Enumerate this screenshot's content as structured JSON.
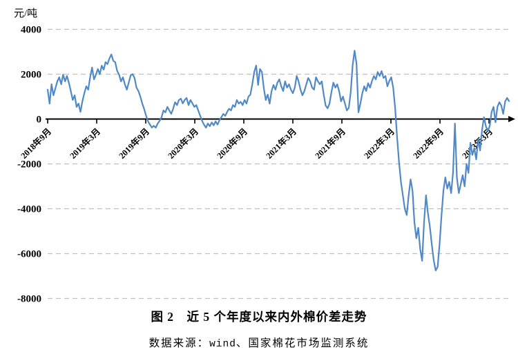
{
  "caption": {
    "title": "图 2　近 5 个年度以来内外棉价差走势",
    "source_prefix": "数据来源：",
    "source_wind": "wind",
    "source_suffix": "、国家棉花市场监测系统"
  },
  "chart_data": {
    "type": "line",
    "title": "图2 近5个年度以来内外棉价差走势",
    "series_name": "内外棉价差",
    "unit": "元/吨",
    "ylabel": "元/吨",
    "xlabel": "",
    "ylim": [
      -8000,
      4000
    ],
    "y_ticks": [
      4000,
      2000,
      0,
      -2000,
      -4000,
      -6000,
      -8000
    ],
    "x_tick_labels": [
      "2018年9月",
      "2019年3月",
      "2019年9月",
      "2020年3月",
      "2020年9月",
      "2021年3月",
      "2021年9月",
      "2022年3月",
      "2022年9月",
      "2023年3月"
    ],
    "grid": "dashed-horizontal",
    "legend": "none",
    "line_color": "#5089C8",
    "gridline_color": "#BFBFBF",
    "axis_color": "#000000",
    "values": [
      1310,
      690,
      1550,
      1060,
      1370,
      1680,
      1860,
      1550,
      1980,
      1680,
      1920,
      1620,
      1250,
      850,
      1060,
      540,
      690,
      320,
      790,
      1150,
      1460,
      1310,
      1860,
      2300,
      1770,
      1980,
      2230,
      2000,
      2380,
      2200,
      2540,
      2450,
      2700,
      2880,
      2600,
      2540,
      2150,
      1980,
      1680,
      1860,
      1550,
      1310,
      1620,
      1950,
      2000,
      1830,
      1400,
      1250,
      1000,
      690,
      450,
      150,
      -100,
      -250,
      -380,
      -300,
      -385,
      -200,
      -80,
      80,
      385,
      300,
      540,
      385,
      230,
      460,
      750,
      620,
      850,
      910,
      700,
      850,
      940,
      620,
      850,
      700,
      540,
      620,
      385,
      150,
      -80,
      -250,
      -385,
      -200,
      -320,
      -150,
      -280,
      -100,
      -250,
      -50,
      80,
      230,
      140,
      320,
      460,
      385,
      620,
      540,
      850,
      690,
      770,
      620,
      850,
      690,
      1000,
      1090,
      1550,
      2100,
      2385,
      1520,
      2230,
      2100,
      1370,
      850,
      1090,
      690,
      1250,
      1520,
      1310,
      1620,
      1770,
      1460,
      1250,
      1680,
      1400,
      1550,
      1310,
      1150,
      1400,
      1920,
      1680,
      1310,
      1060,
      1250,
      1550,
      1830,
      1680,
      1400,
      1310,
      1860,
      1680,
      1550,
      1680,
      1090,
      600,
      480,
      690,
      1210,
      1620,
      1400,
      1550,
      1250,
      790,
      1000,
      690,
      385,
      500,
      1200,
      2400,
      3050,
      2460,
      300,
      690,
      1150,
      1460,
      1250,
      1600,
      1400,
      1700,
      1920,
      1770,
      2100,
      1920,
      2140,
      1830,
      1920,
      1460,
      1700,
      1860,
      1400,
      500,
      -800,
      -1900,
      -2800,
      -3400,
      -4000,
      -4280,
      -3400,
      -2690,
      -3200,
      -4600,
      -5310,
      -4850,
      -5800,
      -6320,
      -4600,
      -3400,
      -4200,
      -4800,
      -5600,
      -6300,
      -6750,
      -6600,
      -5600,
      -4320,
      -3200,
      -2600,
      -3100,
      -2800,
      -3300,
      -2400,
      -200,
      -2600,
      -3300,
      -2900,
      -2500,
      -3000,
      -2000,
      -2400,
      -1060,
      -1600,
      -1300,
      -1800,
      -900,
      -1400,
      -500,
      80,
      -320,
      -540,
      -300,
      320,
      540,
      -140,
      540,
      750,
      600,
      230,
      785,
      940,
      800
    ]
  }
}
